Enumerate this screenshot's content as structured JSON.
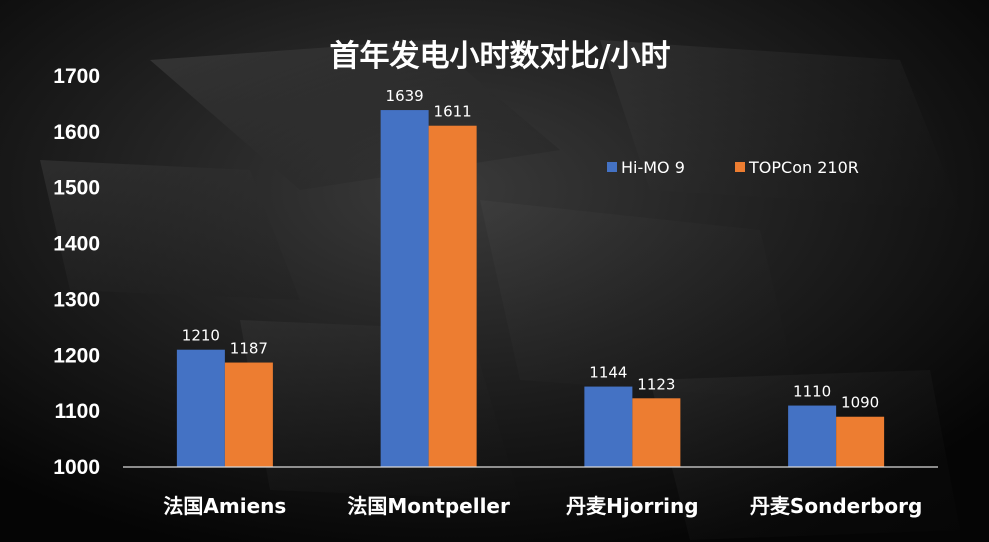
{
  "chart_data": {
    "type": "bar",
    "title": "首年发电小时数对比/小时",
    "categories": [
      "法国Amiens",
      "法国Montpeller",
      "丹麦Hjorring",
      "丹麦Sonderborg"
    ],
    "series": [
      {
        "name": "Hi-MO 9",
        "color": "#4472C4",
        "values": [
          1210,
          1639,
          1144,
          1110
        ]
      },
      {
        "name": "TOPCon 210R",
        "color": "#ED7D31",
        "values": [
          1187,
          1611,
          1123,
          1090
        ]
      }
    ],
    "ylim": [
      1000,
      1700
    ],
    "yticks": [
      1000,
      1100,
      1200,
      1300,
      1400,
      1500,
      1600,
      1700
    ],
    "legend": "top-right",
    "grid": false
  }
}
